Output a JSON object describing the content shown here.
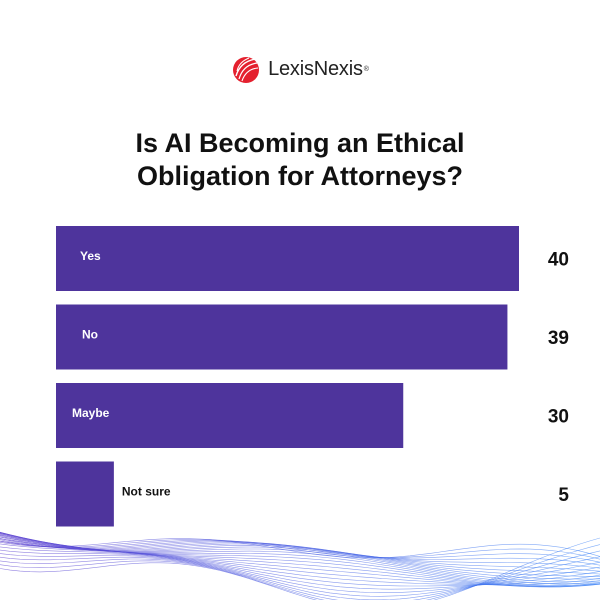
{
  "brand": {
    "name": "LexisNexis",
    "mark": "®"
  },
  "colors": {
    "bar": "#4E349C",
    "logo_red": "#E4202E",
    "wave_start": "#5B3FCF",
    "wave_end": "#3B82F6"
  },
  "chart_data": {
    "type": "bar",
    "orientation": "horizontal",
    "title_lines": [
      "Is AI Becoming an Ethical",
      "Obligation for Attorneys?"
    ],
    "categories": [
      "Yes",
      "No",
      "Maybe",
      "Not sure"
    ],
    "values": [
      40,
      39,
      30,
      5
    ],
    "xlim": [
      0,
      40
    ],
    "grid": false,
    "legend": "none"
  }
}
